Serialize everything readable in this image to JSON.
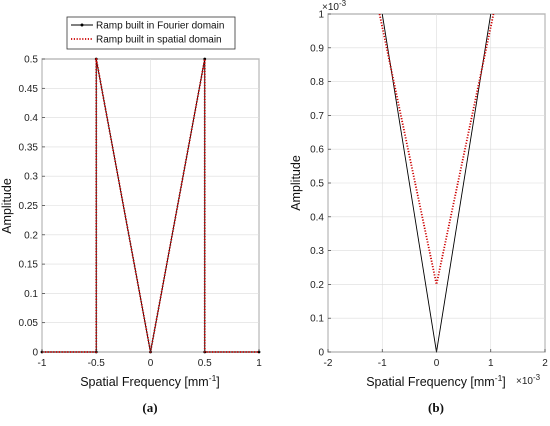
{
  "chart_data": [
    {
      "type": "line",
      "panel_label": "(a)",
      "xlabel": "Spatial Frequency [mm",
      "xlabel_sup": "-1",
      "xlabel_close": "]",
      "ylabel": "Amplitude",
      "xlim": [
        -1,
        1
      ],
      "ylim": [
        0,
        0.5
      ],
      "xticks": [
        -1,
        -0.5,
        0,
        0.5,
        1
      ],
      "xtick_labels": [
        "-1",
        "-0.5",
        "0",
        "0.5",
        "1"
      ],
      "yticks": [
        0,
        0.05,
        0.1,
        0.15,
        0.2,
        0.25,
        0.3,
        0.35,
        0.4,
        0.45,
        0.5
      ],
      "ytick_labels": [
        "0",
        "0.05",
        "0.1",
        "0.15",
        "0.2",
        "0.25",
        "0.3",
        "0.35",
        "0.4",
        "0.45",
        "0.5"
      ],
      "grid": true,
      "legend_position": "top",
      "series": [
        {
          "name": "Ramp built in Fourier domain",
          "color": "#000000",
          "style": "solid-dot",
          "x": [
            -1,
            -0.5,
            -0.5,
            0,
            0.5,
            0.5,
            1
          ],
          "y": [
            0,
            0,
            0.5,
            0,
            0.5,
            0,
            0
          ]
        },
        {
          "name": "Ramp built in spatial domain",
          "color": "#cc0000",
          "style": "dotted",
          "x": [
            -1,
            -0.5,
            -0.5,
            0,
            0.5,
            0.5,
            1
          ],
          "y": [
            0,
            0,
            0.5,
            0.0002,
            0.5,
            0,
            0
          ]
        }
      ]
    },
    {
      "type": "line",
      "panel_label": "(b)",
      "xlabel": "Spatial Frequency [mm",
      "xlabel_sup": "-1",
      "xlabel_close": "]",
      "x_multiplier_base": "×10",
      "x_multiplier_exp": "-3",
      "ylabel": "Amplitude",
      "y_multiplier_base": "×10",
      "y_multiplier_exp": "-3",
      "xlim": [
        -2,
        2
      ],
      "ylim": [
        0,
        1
      ],
      "xticks": [
        -2,
        -1,
        0,
        1,
        2
      ],
      "xtick_labels": [
        "-2",
        "-1",
        "0",
        "1",
        "2"
      ],
      "yticks": [
        0,
        0.1,
        0.2,
        0.3,
        0.4,
        0.5,
        0.6,
        0.7,
        0.8,
        0.9,
        1
      ],
      "ytick_labels": [
        "0",
        "0.1",
        "0.2",
        "0.3",
        "0.4",
        "0.5",
        "0.6",
        "0.7",
        "0.8",
        "0.9",
        "1"
      ],
      "grid": true,
      "series": [
        {
          "name": "Ramp built in Fourier domain",
          "color": "#000000",
          "style": "solid",
          "x": [
            -1,
            0,
            1
          ],
          "y": [
            1,
            0,
            1
          ]
        },
        {
          "name": "Ramp built in spatial domain",
          "color": "#cc0000",
          "style": "dotted",
          "x": [
            -1.05,
            0,
            1.05
          ],
          "y": [
            1,
            0.2,
            1
          ]
        }
      ]
    }
  ]
}
